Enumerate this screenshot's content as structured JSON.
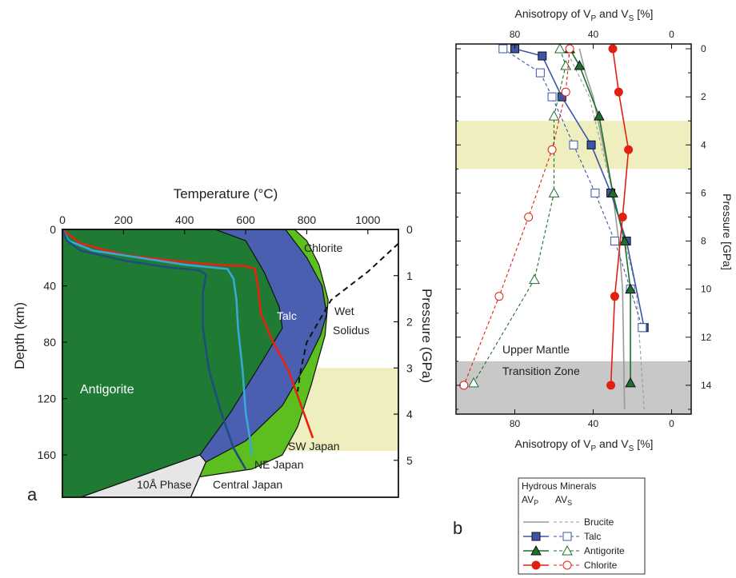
{
  "colors": {
    "antigorite_field": "#1f7a34",
    "talc_field": "#4a5fb0",
    "chlorite_field": "#5cbf1f",
    "tenA_field": "#e6e6e6",
    "band": "#efeebf",
    "transition_band": "#c8c8c8",
    "sw_japan": "#e8220f",
    "ne_japan": "#37a8d8",
    "central_japan": "#1d4f7c",
    "brucite": "#9a9a9a",
    "talc": "#3c55a8",
    "antigorite": "#1e6e2c",
    "chlorite": "#e02010"
  },
  "chart_data": [
    {
      "type": "phase-diagram",
      "panel_label": "a",
      "title": "Temperature (°C)",
      "xlabel": "Temperature (°C)",
      "ylabel": "Depth (km)",
      "y2label": "Pressure (GPa)",
      "xlim": [
        0,
        1100
      ],
      "ylim_depth": [
        0,
        190
      ],
      "ylim_pressure": [
        0,
        5.8
      ],
      "x_ticks": [
        "0",
        "200",
        "400",
        "600",
        "800",
        "1000"
      ],
      "depth_ticks": [
        "0",
        "40",
        "80",
        "120",
        "160"
      ],
      "pressure_ticks": [
        "0",
        "1",
        "2",
        "3",
        "4",
        "5"
      ],
      "field_labels": {
        "antigorite": "Antigorite",
        "talc": "Talc",
        "chlorite": "Chlorite",
        "wet_solidus": [
          "Wet",
          "Solidus"
        ],
        "ten_a": "10Å Phase"
      },
      "shaded_pressure_range": [
        3,
        4.8
      ],
      "fields": {
        "antigorite_boundary": [
          [
            500,
            0
          ],
          [
            600,
            8
          ],
          [
            660,
            30
          ],
          [
            710,
            55
          ],
          [
            720,
            70
          ],
          [
            650,
            95
          ],
          [
            550,
            130
          ],
          [
            450,
            160
          ],
          [
            60,
            190
          ]
        ],
        "talc_boundary": [
          [
            730,
            0
          ],
          [
            800,
            20
          ],
          [
            850,
            40
          ],
          [
            865,
            60
          ],
          [
            845,
            75
          ],
          [
            800,
            95
          ],
          [
            720,
            125
          ],
          [
            600,
            150
          ],
          [
            470,
            165
          ]
        ],
        "chlorite_boundary": [
          [
            760,
            0
          ],
          [
            800,
            8
          ],
          [
            840,
            25
          ],
          [
            870,
            50
          ],
          [
            860,
            75
          ],
          [
            815,
            110
          ],
          [
            770,
            140
          ],
          [
            720,
            160
          ],
          [
            620,
            170
          ]
        ],
        "ten_a_boundary": [
          [
            470,
            165
          ],
          [
            440,
            180
          ],
          [
            420,
            190
          ]
        ],
        "wet_solidus": [
          [
            1100,
            10
          ],
          [
            1000,
            30
          ],
          [
            880,
            50
          ],
          [
            800,
            80
          ],
          [
            780,
            100
          ],
          [
            770,
            115
          ]
        ]
      },
      "series": [
        {
          "name": "SW Japan",
          "points": [
            [
              0,
              0
            ],
            [
              60,
              10
            ],
            [
              200,
              18
            ],
            [
              350,
              22
            ],
            [
              500,
              25
            ],
            [
              600,
              26
            ],
            [
              630,
              28
            ],
            [
              640,
              40
            ],
            [
              650,
              60
            ],
            [
              690,
              80
            ],
            [
              740,
              100
            ],
            [
              790,
              130
            ],
            [
              820,
              148
            ]
          ]
        },
        {
          "name": "NE Japan",
          "points": [
            [
              0,
              0
            ],
            [
              20,
              8
            ],
            [
              100,
              15
            ],
            [
              250,
              20
            ],
            [
              400,
              25
            ],
            [
              540,
              28
            ],
            [
              560,
              35
            ],
            [
              570,
              50
            ],
            [
              575,
              70
            ],
            [
              590,
              100
            ],
            [
              600,
              130
            ],
            [
              615,
              150
            ],
            [
              620,
              160
            ]
          ]
        },
        {
          "name": "Central Japan",
          "points": [
            [
              0,
              0
            ],
            [
              15,
              8
            ],
            [
              60,
              15
            ],
            [
              200,
              22
            ],
            [
              350,
              27
            ],
            [
              450,
              29
            ],
            [
              470,
              32
            ],
            [
              460,
              45
            ],
            [
              460,
              70
            ],
            [
              480,
              100
            ],
            [
              520,
              130
            ],
            [
              560,
              155
            ],
            [
              600,
              170
            ]
          ]
        }
      ]
    },
    {
      "type": "line",
      "panel_label": "b",
      "xlabel_top": "Anisotropy of V",
      "xlabel_bottom": "Anisotropy of V",
      "xlabel_sub": [
        "P",
        "S"
      ],
      "xlabel_join": " and V",
      "xlabel_unit": " [%]",
      "ylabel": "Pressure [GPa]",
      "xlim": [
        110,
        -10
      ],
      "ylim": [
        0,
        15
      ],
      "x_ticks": [
        "80",
        "40",
        "0"
      ],
      "y_ticks": [
        "0",
        "2",
        "4",
        "6",
        "8",
        "10",
        "12",
        "14"
      ],
      "shaded_pressure_range": [
        3,
        5
      ],
      "transition_range": [
        13,
        15
      ],
      "region_labels": {
        "upper": "Upper Mantle",
        "lower": "Transition Zone"
      },
      "legend": {
        "title": "Hydrous Minerals",
        "col1": "AV",
        "col1_sub": "P",
        "col2": "AV",
        "col2_sub": "S",
        "items": [
          "Brucite",
          "Talc",
          "Antigorite",
          "Chlorite"
        ]
      },
      "series": [
        {
          "name": "Brucite",
          "kind": "AVp",
          "marker": "none",
          "x": [
            47,
            44,
            40,
            35,
            30,
            27,
            25,
            24
          ],
          "y": [
            0,
            1,
            2,
            4,
            6,
            8,
            10,
            15
          ]
        },
        {
          "name": "Brucite",
          "kind": "AVs",
          "marker": "none",
          "x": [
            54,
            48,
            42,
            36,
            30,
            24,
            18,
            14
          ],
          "y": [
            0,
            1,
            2,
            4,
            6,
            8,
            10,
            15
          ]
        },
        {
          "name": "Talc",
          "kind": "AVp",
          "marker": "square",
          "x": [
            80,
            66,
            56,
            41,
            31,
            23,
            14
          ],
          "y": [
            0,
            0.3,
            2,
            4,
            6,
            8,
            11.6
          ]
        },
        {
          "name": "Talc",
          "kind": "AVs",
          "marker": "square-open",
          "x": [
            86,
            67,
            61,
            50,
            39,
            29,
            21,
            15
          ],
          "y": [
            0,
            1,
            2,
            4,
            6,
            8,
            10,
            11.6
          ]
        },
        {
          "name": "Antigorite",
          "kind": "AVp",
          "marker": "triangle",
          "x": [
            52,
            47,
            37,
            30,
            24,
            21,
            21
          ],
          "y": [
            0,
            0.7,
            2.8,
            6,
            8,
            10,
            13.9
          ]
        },
        {
          "name": "Antigorite",
          "kind": "AVs",
          "marker": "triangle-open",
          "x": [
            57,
            54,
            60,
            60,
            70,
            101
          ],
          "y": [
            0,
            0.7,
            2.8,
            6,
            9.6,
            13.9
          ]
        },
        {
          "name": "Chlorite",
          "kind": "AVp",
          "marker": "circle",
          "x": [
            30,
            27,
            22,
            25,
            29,
            31
          ],
          "y": [
            0,
            1.8,
            4.2,
            7,
            10.3,
            14
          ]
        },
        {
          "name": "Chlorite",
          "kind": "AVs",
          "marker": "circle-open",
          "x": [
            52,
            54,
            61,
            73,
            88,
            106
          ],
          "y": [
            0,
            1.8,
            4.2,
            7,
            10.3,
            14
          ]
        }
      ]
    }
  ]
}
